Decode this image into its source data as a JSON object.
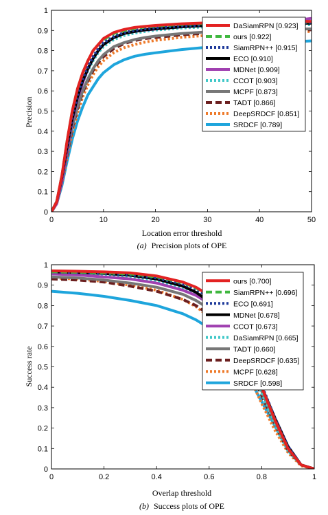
{
  "chart_data": [
    {
      "type": "line",
      "caption_letter": "(a)",
      "caption": "Precision plots of OPE",
      "xlabel": "Location error threshold",
      "ylabel": "Precision",
      "xlim": [
        0,
        50
      ],
      "ylim": [
        0,
        1
      ],
      "xticks": [
        "0",
        "10",
        "20",
        "30",
        "40",
        "50"
      ],
      "yticks": [
        "0",
        "0.1",
        "0.2",
        "0.3",
        "0.4",
        "0.5",
        "0.6",
        "0.7",
        "0.8",
        "0.9",
        "1"
      ],
      "legend_position": "top-right",
      "series": [
        {
          "name": "DaSiamRPN [0.923]",
          "color": "#e32222",
          "style": "solid",
          "x": [
            0,
            1,
            2,
            3,
            4,
            5,
            6,
            7,
            8,
            9,
            10,
            12,
            14,
            16,
            18,
            20,
            25,
            30,
            35,
            40,
            45,
            50
          ],
          "y": [
            0,
            0.05,
            0.18,
            0.35,
            0.5,
            0.61,
            0.69,
            0.75,
            0.8,
            0.83,
            0.86,
            0.89,
            0.905,
            0.915,
            0.92,
            0.925,
            0.933,
            0.938,
            0.94,
            0.942,
            0.944,
            0.945
          ]
        },
        {
          "name": "ours [0.922]",
          "color": "#3fb73f",
          "style": "dashed",
          "x": [
            0,
            1,
            2,
            3,
            4,
            5,
            6,
            7,
            8,
            9,
            10,
            12,
            14,
            16,
            18,
            20,
            25,
            30,
            35,
            40,
            45,
            50
          ],
          "y": [
            0,
            0.05,
            0.18,
            0.35,
            0.5,
            0.61,
            0.69,
            0.75,
            0.8,
            0.83,
            0.855,
            0.885,
            0.9,
            0.91,
            0.918,
            0.922,
            0.93,
            0.935,
            0.938,
            0.94,
            0.942,
            0.943
          ]
        },
        {
          "name": "SiamRPN++ [0.915]",
          "color": "#1f3a9a",
          "style": "dotted",
          "x": [
            0,
            1,
            2,
            3,
            4,
            5,
            6,
            7,
            8,
            9,
            10,
            12,
            14,
            16,
            18,
            20,
            25,
            30,
            35,
            40,
            45,
            50
          ],
          "y": [
            0,
            0.05,
            0.17,
            0.33,
            0.47,
            0.58,
            0.66,
            0.72,
            0.77,
            0.81,
            0.84,
            0.87,
            0.89,
            0.9,
            0.908,
            0.913,
            0.922,
            0.928,
            0.932,
            0.935,
            0.937,
            0.94
          ]
        },
        {
          "name": "ECO [0.910]",
          "color": "#000000",
          "style": "solid",
          "x": [
            0,
            1,
            2,
            3,
            4,
            5,
            6,
            7,
            8,
            9,
            10,
            12,
            14,
            16,
            18,
            20,
            25,
            30,
            35,
            40,
            45,
            50
          ],
          "y": [
            0,
            0.05,
            0.17,
            0.32,
            0.46,
            0.57,
            0.65,
            0.71,
            0.76,
            0.8,
            0.83,
            0.865,
            0.885,
            0.895,
            0.903,
            0.908,
            0.918,
            0.925,
            0.929,
            0.932,
            0.934,
            0.936
          ]
        },
        {
          "name": "MDNet [0.909]",
          "color": "#a040b0",
          "style": "solid",
          "x": [
            0,
            1,
            2,
            3,
            4,
            5,
            6,
            7,
            8,
            9,
            10,
            12,
            14,
            16,
            18,
            20,
            25,
            30,
            35,
            40,
            45,
            50
          ],
          "y": [
            0,
            0.04,
            0.15,
            0.3,
            0.45,
            0.56,
            0.64,
            0.71,
            0.76,
            0.8,
            0.83,
            0.865,
            0.885,
            0.895,
            0.902,
            0.907,
            0.918,
            0.925,
            0.93,
            0.935,
            0.945,
            0.96
          ]
        },
        {
          "name": "CCOT [0.903]",
          "color": "#40c8c8",
          "style": "dotted",
          "x": [
            0,
            1,
            2,
            3,
            4,
            5,
            6,
            7,
            8,
            9,
            10,
            12,
            14,
            16,
            18,
            20,
            25,
            30,
            35,
            40,
            45,
            50
          ],
          "y": [
            0,
            0.05,
            0.16,
            0.31,
            0.45,
            0.56,
            0.64,
            0.7,
            0.75,
            0.79,
            0.82,
            0.855,
            0.875,
            0.887,
            0.895,
            0.902,
            0.912,
            0.918,
            0.922,
            0.925,
            0.927,
            0.929
          ]
        },
        {
          "name": "MCPF [0.873]",
          "color": "#777777",
          "style": "solid",
          "x": [
            0,
            1,
            2,
            3,
            4,
            5,
            6,
            7,
            8,
            9,
            10,
            12,
            14,
            16,
            18,
            20,
            25,
            30,
            35,
            40,
            45,
            50
          ],
          "y": [
            0,
            0.04,
            0.15,
            0.29,
            0.42,
            0.52,
            0.6,
            0.66,
            0.71,
            0.75,
            0.78,
            0.82,
            0.84,
            0.855,
            0.865,
            0.872,
            0.885,
            0.893,
            0.898,
            0.902,
            0.905,
            0.908
          ]
        },
        {
          "name": "TADT [0.866]",
          "color": "#6b1f1f",
          "style": "dashed",
          "x": [
            0,
            1,
            2,
            3,
            4,
            5,
            6,
            7,
            8,
            9,
            10,
            12,
            14,
            16,
            18,
            20,
            25,
            30,
            35,
            40,
            45,
            50
          ],
          "y": [
            0,
            0.04,
            0.15,
            0.28,
            0.41,
            0.51,
            0.59,
            0.65,
            0.7,
            0.74,
            0.77,
            0.81,
            0.835,
            0.85,
            0.86,
            0.865,
            0.878,
            0.887,
            0.893,
            0.897,
            0.9,
            0.903
          ]
        },
        {
          "name": "DeepSRDCF [0.851]",
          "color": "#ee7a2a",
          "style": "dotted",
          "x": [
            0,
            1,
            2,
            3,
            4,
            5,
            6,
            7,
            8,
            9,
            10,
            12,
            14,
            16,
            18,
            20,
            25,
            30,
            35,
            40,
            45,
            50
          ],
          "y": [
            0,
            0.04,
            0.14,
            0.27,
            0.39,
            0.49,
            0.57,
            0.63,
            0.68,
            0.72,
            0.75,
            0.79,
            0.815,
            0.83,
            0.842,
            0.851,
            0.866,
            0.876,
            0.883,
            0.888,
            0.892,
            0.895
          ]
        },
        {
          "name": "SRDCF [0.789]",
          "color": "#1ea5dc",
          "style": "solid",
          "x": [
            0,
            1,
            2,
            3,
            4,
            5,
            6,
            7,
            8,
            9,
            10,
            12,
            14,
            16,
            18,
            20,
            25,
            30,
            35,
            40,
            45,
            50
          ],
          "y": [
            0,
            0.04,
            0.13,
            0.25,
            0.36,
            0.45,
            0.52,
            0.58,
            0.62,
            0.66,
            0.69,
            0.73,
            0.755,
            0.772,
            0.782,
            0.789,
            0.805,
            0.817,
            0.827,
            0.835,
            0.842,
            0.848
          ]
        }
      ]
    },
    {
      "type": "line",
      "caption_letter": "(b)",
      "caption": "Success plots of OPE",
      "xlabel": "Overlap threshold",
      "ylabel": "Success rate",
      "xlim": [
        0,
        1
      ],
      "ylim": [
        0,
        1
      ],
      "xticks": [
        "0",
        "0.2",
        "0.4",
        "0.6",
        "0.8",
        "1"
      ],
      "yticks": [
        "0",
        "0.1",
        "0.2",
        "0.3",
        "0.4",
        "0.5",
        "0.6",
        "0.7",
        "0.8",
        "0.9",
        "1"
      ],
      "legend_position": "top-right",
      "series": [
        {
          "name": "ours [0.700]",
          "color": "#e32222",
          "style": "solid",
          "x": [
            0,
            0.1,
            0.2,
            0.3,
            0.4,
            0.5,
            0.55,
            0.6,
            0.65,
            0.7,
            0.75,
            0.8,
            0.85,
            0.9,
            0.95,
            1
          ],
          "y": [
            0.97,
            0.968,
            0.965,
            0.96,
            0.945,
            0.915,
            0.89,
            0.85,
            0.79,
            0.7,
            0.56,
            0.4,
            0.24,
            0.1,
            0.02,
            0
          ]
        },
        {
          "name": "SiamRPN++ [0.696]",
          "color": "#3fb73f",
          "style": "dashed",
          "x": [
            0,
            0.1,
            0.2,
            0.3,
            0.4,
            0.5,
            0.55,
            0.6,
            0.65,
            0.7,
            0.75,
            0.8,
            0.85,
            0.9,
            0.95,
            1
          ],
          "y": [
            0.965,
            0.963,
            0.96,
            0.955,
            0.94,
            0.912,
            0.887,
            0.848,
            0.788,
            0.7,
            0.56,
            0.4,
            0.24,
            0.1,
            0.02,
            0
          ]
        },
        {
          "name": "ECO [0.691]",
          "color": "#1f3a9a",
          "style": "dotted",
          "x": [
            0,
            0.1,
            0.2,
            0.3,
            0.4,
            0.5,
            0.55,
            0.6,
            0.65,
            0.7,
            0.75,
            0.8,
            0.85,
            0.9,
            0.95,
            1
          ],
          "y": [
            0.965,
            0.962,
            0.958,
            0.95,
            0.935,
            0.905,
            0.88,
            0.84,
            0.78,
            0.69,
            0.56,
            0.41,
            0.25,
            0.11,
            0.02,
            0
          ]
        },
        {
          "name": "MDNet [0.678]",
          "color": "#000000",
          "style": "solid",
          "x": [
            0,
            0.1,
            0.2,
            0.3,
            0.4,
            0.5,
            0.55,
            0.6,
            0.65,
            0.7,
            0.75,
            0.8,
            0.85,
            0.9,
            0.95,
            1
          ],
          "y": [
            0.965,
            0.962,
            0.957,
            0.948,
            0.93,
            0.895,
            0.865,
            0.82,
            0.75,
            0.66,
            0.54,
            0.4,
            0.25,
            0.11,
            0.02,
            0
          ]
        },
        {
          "name": "CCOT [0.673]",
          "color": "#a040b0",
          "style": "solid",
          "x": [
            0,
            0.1,
            0.2,
            0.3,
            0.4,
            0.5,
            0.55,
            0.6,
            0.65,
            0.7,
            0.75,
            0.8,
            0.85,
            0.9,
            0.95,
            1
          ],
          "y": [
            0.955,
            0.95,
            0.94,
            0.93,
            0.91,
            0.875,
            0.85,
            0.81,
            0.75,
            0.66,
            0.54,
            0.4,
            0.25,
            0.11,
            0.02,
            0
          ]
        },
        {
          "name": "DaSiamRPN [0.665]",
          "color": "#40c8c8",
          "style": "dotted",
          "x": [
            0,
            0.1,
            0.2,
            0.3,
            0.4,
            0.5,
            0.55,
            0.6,
            0.65,
            0.7,
            0.75,
            0.8,
            0.85,
            0.9,
            0.95,
            1
          ],
          "y": [
            0.96,
            0.957,
            0.95,
            0.94,
            0.92,
            0.885,
            0.855,
            0.81,
            0.74,
            0.64,
            0.51,
            0.37,
            0.22,
            0.09,
            0.02,
            0
          ]
        },
        {
          "name": "TADT [0.660]",
          "color": "#777777",
          "style": "solid",
          "x": [
            0,
            0.1,
            0.2,
            0.3,
            0.4,
            0.5,
            0.55,
            0.6,
            0.65,
            0.7,
            0.75,
            0.8,
            0.85,
            0.9,
            0.95,
            1
          ],
          "y": [
            0.94,
            0.935,
            0.925,
            0.91,
            0.89,
            0.855,
            0.825,
            0.785,
            0.72,
            0.63,
            0.52,
            0.38,
            0.23,
            0.1,
            0.02,
            0
          ]
        },
        {
          "name": "DeepSRDCF [0.635]",
          "color": "#6b1f1f",
          "style": "dashed",
          "x": [
            0,
            0.1,
            0.2,
            0.3,
            0.4,
            0.5,
            0.55,
            0.6,
            0.65,
            0.7,
            0.75,
            0.8,
            0.85,
            0.9,
            0.95,
            1
          ],
          "y": [
            0.93,
            0.925,
            0.915,
            0.895,
            0.87,
            0.83,
            0.8,
            0.755,
            0.69,
            0.6,
            0.49,
            0.36,
            0.22,
            0.09,
            0.02,
            0
          ]
        },
        {
          "name": "MCPF [0.628]",
          "color": "#ee7a2a",
          "style": "dotted",
          "x": [
            0,
            0.1,
            0.2,
            0.3,
            0.4,
            0.5,
            0.55,
            0.6,
            0.65,
            0.7,
            0.75,
            0.8,
            0.85,
            0.9,
            0.95,
            1
          ],
          "y": [
            0.935,
            0.93,
            0.918,
            0.9,
            0.875,
            0.83,
            0.795,
            0.745,
            0.675,
            0.58,
            0.46,
            0.32,
            0.19,
            0.08,
            0.015,
            0
          ]
        },
        {
          "name": "SRDCF [0.598]",
          "color": "#1ea5dc",
          "style": "solid",
          "x": [
            0,
            0.1,
            0.2,
            0.3,
            0.4,
            0.5,
            0.55,
            0.6,
            0.65,
            0.7,
            0.75,
            0.8,
            0.85,
            0.9,
            0.95,
            1
          ],
          "y": [
            0.87,
            0.86,
            0.845,
            0.825,
            0.8,
            0.76,
            0.73,
            0.69,
            0.63,
            0.55,
            0.45,
            0.33,
            0.21,
            0.09,
            0.02,
            0
          ]
        }
      ]
    }
  ]
}
